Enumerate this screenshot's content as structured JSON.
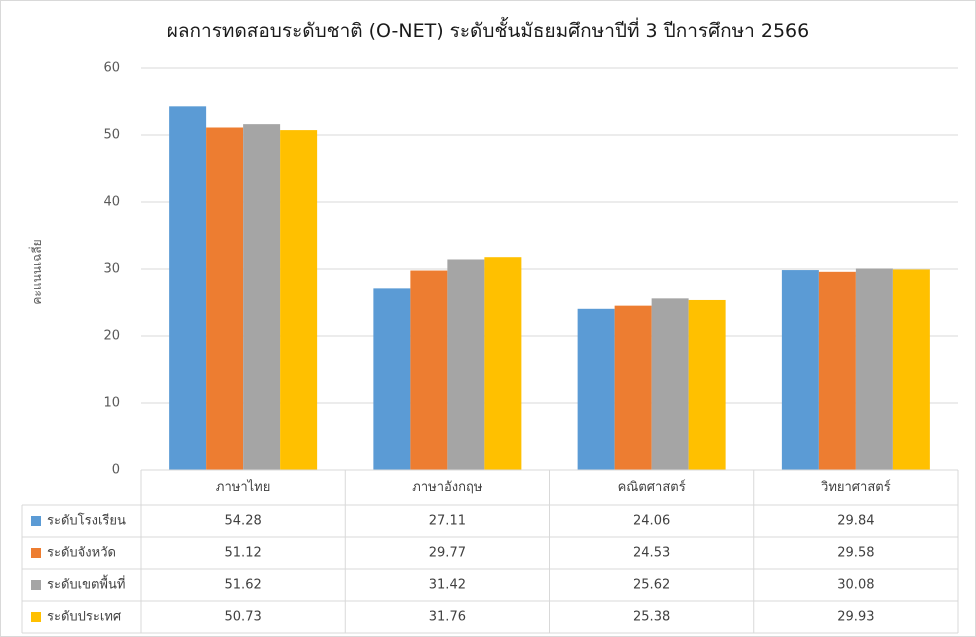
{
  "chart_data": {
    "type": "bar",
    "title": "ผลการทดสอบระดับชาติ (O-NET)  ระดับชั้นมัธยมศึกษาปีที่ 3 ปีการศึกษา 2566",
    "ylabel": "คะแนนเฉลี่ย",
    "xlabel": "",
    "ylim": [
      0,
      60
    ],
    "yticks": [
      "0",
      "10",
      "20",
      "30",
      "40",
      "50",
      "60"
    ],
    "grid": true,
    "legend_placement": "data-table",
    "categories": [
      "ภาษาไทย",
      "ภาษาอังกฤษ",
      "คณิตศาสตร์",
      "วิทยาศาสตร์"
    ],
    "series": [
      {
        "name": "ระดับโรงเรียน",
        "color": "#5b9bd5",
        "values": [
          54.28,
          27.11,
          24.06,
          29.84
        ],
        "labels": [
          "54.28",
          "27.11",
          "24.06",
          "29.84"
        ]
      },
      {
        "name": "ระดับจังหวัด",
        "color": "#ed7d31",
        "values": [
          51.12,
          29.77,
          24.53,
          29.58
        ],
        "labels": [
          "51.12",
          "29.77",
          "24.53",
          "29.58"
        ]
      },
      {
        "name": "ระดับเขตพื้นที่",
        "color": "#a5a5a5",
        "values": [
          51.62,
          31.42,
          25.62,
          30.08
        ],
        "labels": [
          "51.62",
          "31.42",
          "25.62",
          "30.08"
        ]
      },
      {
        "name": "ระดับประเทศ",
        "color": "#ffc000",
        "values": [
          50.73,
          31.76,
          25.38,
          29.93
        ],
        "labels": [
          "50.73",
          "31.76",
          "25.38",
          "29.93"
        ]
      }
    ]
  }
}
